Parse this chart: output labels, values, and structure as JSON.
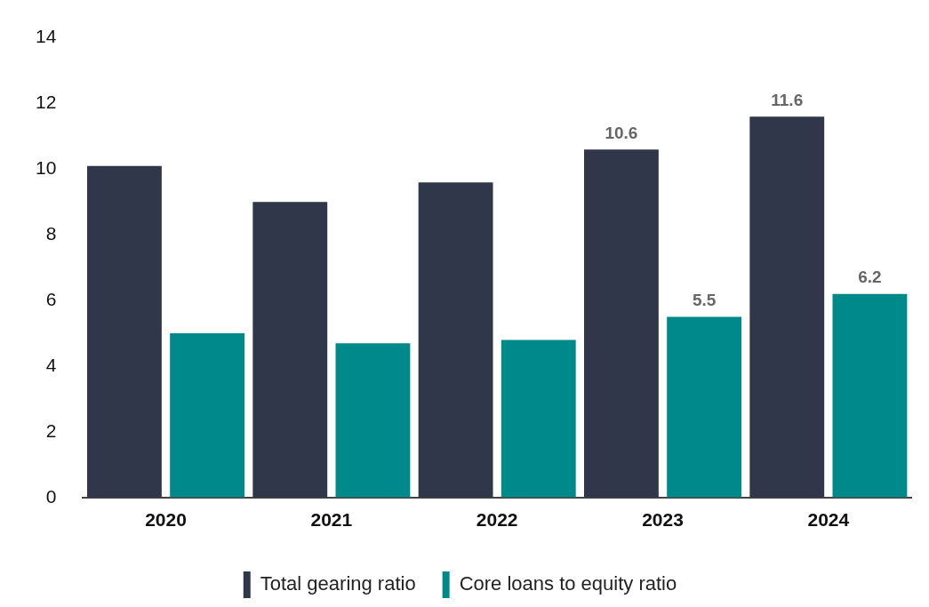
{
  "chart_data": {
    "type": "bar",
    "categories": [
      "2020",
      "2021",
      "2022",
      "2023",
      "2024"
    ],
    "series": [
      {
        "name": "Total gearing ratio",
        "color": "#30374a",
        "values": [
          10.1,
          9.0,
          9.6,
          10.6,
          11.6
        ],
        "value_labels": [
          null,
          null,
          null,
          "10.6",
          "11.6"
        ]
      },
      {
        "name": "Core loans to equity ratio",
        "color": "#00898a",
        "values": [
          5.0,
          4.7,
          4.8,
          5.5,
          6.2
        ],
        "value_labels": [
          null,
          null,
          null,
          "5.5",
          "6.2"
        ]
      }
    ],
    "ylim": [
      0,
      14
    ],
    "yticks": [
      0,
      2,
      4,
      6,
      8,
      10,
      12,
      14
    ],
    "grid": false,
    "legend": "bottom"
  }
}
